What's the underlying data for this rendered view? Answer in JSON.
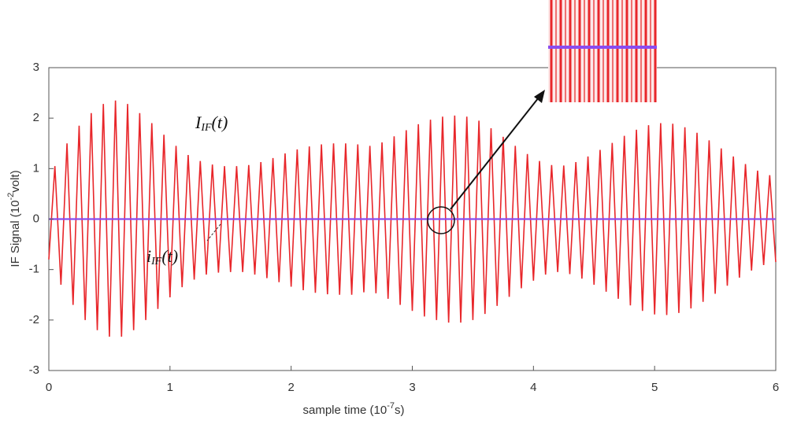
{
  "chart_data": {
    "type": "line",
    "xlabel": {
      "text": "sample time  (10",
      "sup": "-7",
      "rest": "s)"
    },
    "ylabel": {
      "text": "IF Signal (10",
      "sup": "-2",
      "rest": "volt)"
    },
    "annotations": [
      {
        "main": "I",
        "sub": "IF",
        "rest": "(t)"
      },
      {
        "main": "i",
        "sub": "IF",
        "rest": "(t)"
      }
    ],
    "xlim": [
      0,
      6
    ],
    "xticks": [
      0,
      1,
      2,
      3,
      4,
      5,
      6
    ],
    "ylim": [
      -3,
      3
    ],
    "yticks": [
      -3,
      -2,
      -1,
      0,
      1,
      2,
      3
    ],
    "series": [
      {
        "color": "#e8262a",
        "x": [
          0,
          0.05,
          0.1,
          0.15,
          0.2,
          0.25,
          0.3,
          0.35,
          0.4,
          0.45,
          0.5,
          0.55,
          0.6,
          0.65,
          0.7,
          0.75,
          0.8,
          0.85,
          0.9,
          0.95,
          1,
          1.05,
          1.1,
          1.15,
          1.2,
          1.25,
          1.3,
          1.35,
          1.4,
          1.45,
          1.5,
          1.55,
          1.6,
          1.65,
          1.7,
          1.75,
          1.8,
          1.85,
          1.9,
          1.95,
          2,
          2.05,
          2.1,
          2.15,
          2.2,
          2.25,
          2.3,
          2.35,
          2.4,
          2.45,
          2.5,
          2.55,
          2.6,
          2.65,
          2.7,
          2.75,
          2.8,
          2.85,
          2.9,
          2.95,
          3,
          3.05,
          3.1,
          3.15,
          3.2,
          3.25,
          3.3,
          3.35,
          3.4,
          3.45,
          3.5,
          3.55,
          3.6,
          3.65,
          3.7,
          3.75,
          3.8,
          3.85,
          3.9,
          3.95,
          4,
          4.05,
          4.1,
          4.15,
          4.2,
          4.25,
          4.3,
          4.35,
          4.4,
          4.45,
          4.5,
          4.55,
          4.6,
          4.65,
          4.7,
          4.75,
          4.8,
          4.85,
          4.9,
          4.95,
          5,
          5.05,
          5.1,
          5.15,
          5.2,
          5.25,
          5.3,
          5.35,
          5.4,
          5.45,
          5.5,
          5.55,
          5.6,
          5.65,
          5.7,
          5.75,
          5.8,
          5.85,
          5.9,
          5.95,
          6
        ],
        "values": [
          -0.8,
          1.05,
          -1.3,
          1.5,
          -1.7,
          1.85,
          -2.0,
          2.1,
          -2.2,
          2.28,
          -2.33,
          2.35,
          -2.33,
          2.28,
          -2.2,
          2.1,
          -2.0,
          1.9,
          -1.78,
          1.67,
          -1.55,
          1.45,
          -1.35,
          1.27,
          -1.2,
          1.15,
          -1.1,
          1.08,
          -1.06,
          1.05,
          -1.05,
          1.05,
          -1.05,
          1.07,
          -1.1,
          1.13,
          -1.17,
          1.21,
          -1.25,
          1.3,
          -1.34,
          1.38,
          -1.41,
          1.44,
          -1.46,
          1.48,
          -1.49,
          1.5,
          -1.5,
          1.5,
          -1.5,
          1.48,
          -1.45,
          1.45,
          -1.47,
          1.52,
          -1.58,
          1.64,
          -1.7,
          1.76,
          -1.82,
          1.88,
          -1.93,
          1.97,
          -2.0,
          2.03,
          -2.05,
          2.05,
          -2.05,
          2.03,
          -2.0,
          1.95,
          -1.88,
          1.8,
          -1.72,
          1.63,
          -1.54,
          1.45,
          -1.37,
          1.29,
          -1.22,
          1.15,
          -1.1,
          1.07,
          -1.05,
          1.06,
          -1.09,
          1.13,
          -1.18,
          1.24,
          -1.3,
          1.37,
          -1.44,
          1.51,
          -1.58,
          1.65,
          -1.71,
          1.77,
          -1.82,
          1.86,
          -1.89,
          1.9,
          -1.9,
          1.89,
          -1.86,
          1.82,
          -1.77,
          1.71,
          -1.64,
          1.56,
          -1.48,
          1.4,
          -1.32,
          1.24,
          -1.16,
          1.09,
          -1.02,
          0.96,
          -0.91,
          0.87,
          -0.85
        ]
      },
      {
        "color": "#8a4cf0",
        "x": [
          0,
          6
        ],
        "values": [
          0,
          0
        ]
      }
    ]
  }
}
